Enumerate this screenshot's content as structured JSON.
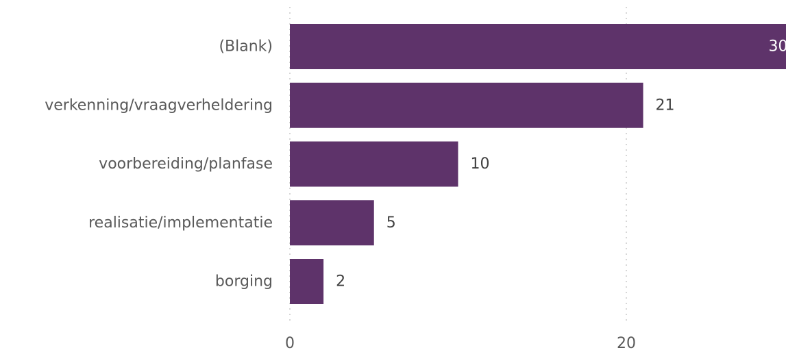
{
  "chart_data": {
    "type": "bar",
    "orientation": "horizontal",
    "categories": [
      "(Blank)",
      "verkenning/vraagverheldering",
      "voorbereiding/planfase",
      "realisatie/implementatie",
      "borging"
    ],
    "values": [
      30,
      21,
      10,
      5,
      2
    ],
    "value_labels": [
      "30",
      "21",
      "10",
      "5",
      "2"
    ],
    "x_ticks": [
      0,
      20
    ],
    "x_tick_labels": [
      "0",
      "20"
    ],
    "xlim": [
      0,
      30
    ],
    "grid": true,
    "legend": "none",
    "title": "",
    "xlabel": "",
    "ylabel": ""
  },
  "colors": {
    "bar": "#5e336a",
    "label_inside": "#ffffff",
    "label_outside": "#404040",
    "gridline": "#c8c8c8",
    "text": "#595959"
  }
}
